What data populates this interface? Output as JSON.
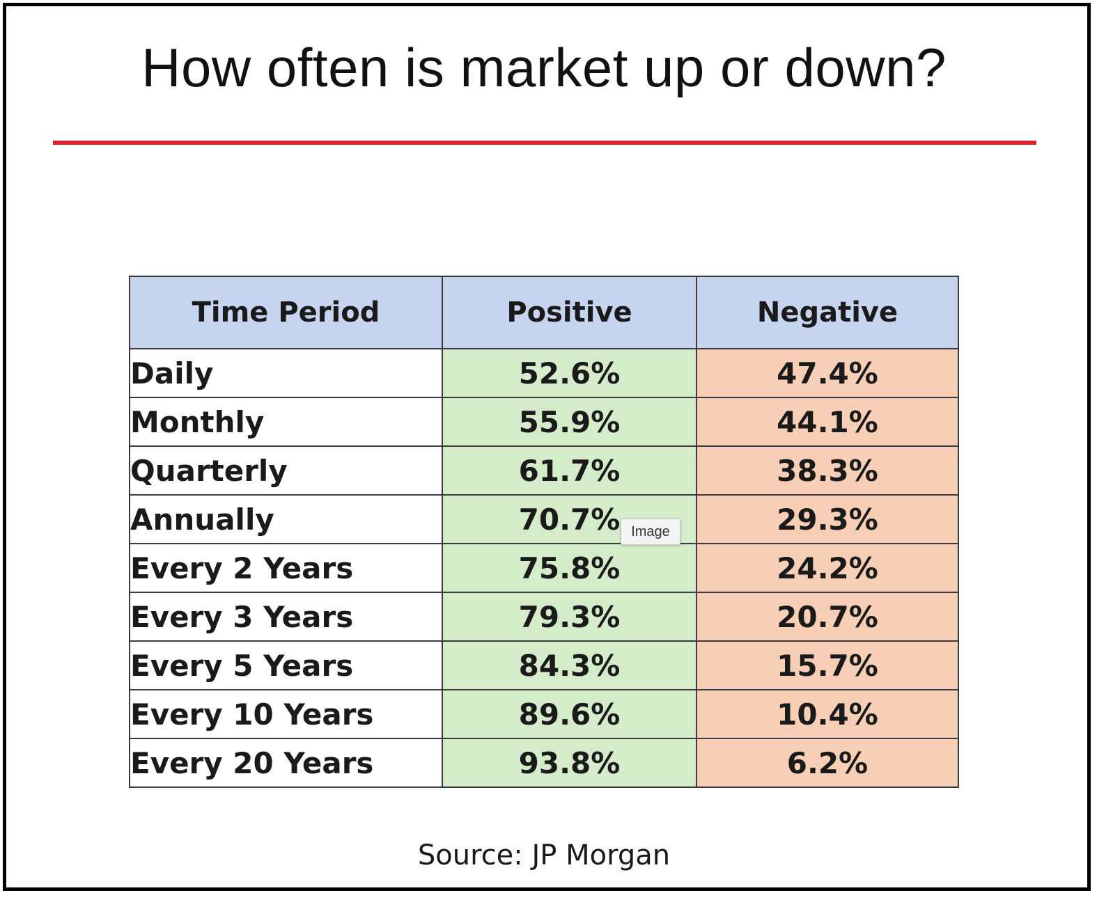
{
  "title": "How often is market up or down?",
  "colors": {
    "accent_rule": "#d9262d",
    "header_bg": "#c6d4ef",
    "positive_bg": "#d5ecca",
    "negative_bg": "#f7cfb6"
  },
  "chart_data": {
    "type": "table",
    "title": "How often is market up or down?",
    "columns": [
      "Time Period",
      "Positive",
      "Negative"
    ],
    "rows": [
      {
        "period": "Daily",
        "positive": "52.6%",
        "negative": "47.4%"
      },
      {
        "period": "Monthly",
        "positive": "55.9%",
        "negative": "44.1%"
      },
      {
        "period": "Quarterly",
        "positive": "61.7%",
        "negative": "38.3%"
      },
      {
        "period": "Annually",
        "positive": "70.7%",
        "negative": "29.3%"
      },
      {
        "period": "Every 2 Years",
        "positive": "75.8%",
        "negative": "24.2%"
      },
      {
        "period": "Every 3 Years",
        "positive": "79.3%",
        "negative": "20.7%"
      },
      {
        "period": "Every 5 Years",
        "positive": "84.3%",
        "negative": "15.7%"
      },
      {
        "period": "Every 10 Years",
        "positive": "89.6%",
        "negative": "10.4%"
      },
      {
        "period": "Every 20 Years",
        "positive": "93.8%",
        "negative": "6.2%"
      }
    ],
    "source": "Source: JP Morgan"
  },
  "tooltip": {
    "label": "Image"
  }
}
